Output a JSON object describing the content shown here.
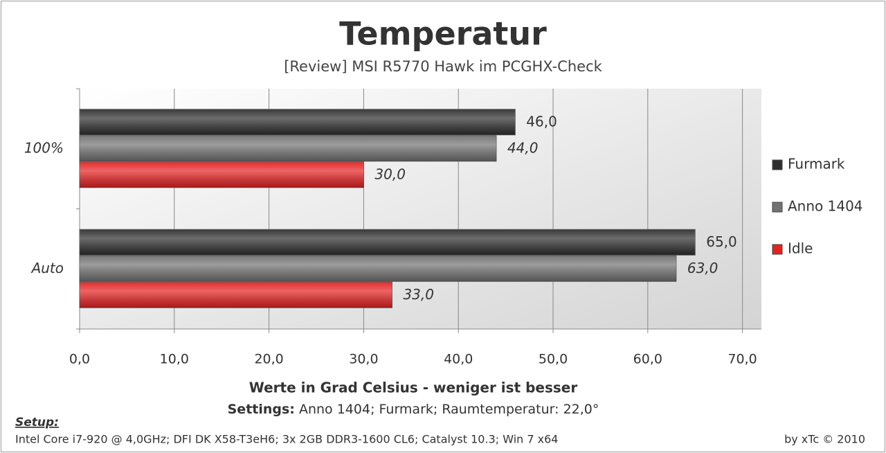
{
  "chart_data": {
    "type": "hbar",
    "title": "Temperatur",
    "subtitle": "[Review] MSI R5770 Hawk im PCGHX-Check",
    "categories": [
      "100%",
      "Auto"
    ],
    "series": [
      {
        "name": "Furmark",
        "color": "#2e2e2e",
        "values": [
          46,
          65
        ],
        "value_labels": [
          "46,0",
          "65,0"
        ]
      },
      {
        "name": "Anno 1404",
        "color": "#727272",
        "values": [
          44,
          63
        ],
        "value_labels": [
          "44,0",
          "63,0"
        ]
      },
      {
        "name": "Idle",
        "color": "#e52222",
        "values": [
          30,
          33
        ],
        "value_labels": [
          "30,0",
          "33,0"
        ]
      }
    ],
    "xlim": [
      0,
      72
    ],
    "xticks": [
      {
        "value": 0,
        "label": "0,0"
      },
      {
        "value": 10,
        "label": "10,0"
      },
      {
        "value": 20,
        "label": "20,0"
      },
      {
        "value": 30,
        "label": "30,0"
      },
      {
        "value": 40,
        "label": "40,0"
      },
      {
        "value": 50,
        "label": "50,0"
      },
      {
        "value": 60,
        "label": "60,0"
      },
      {
        "value": 70,
        "label": "70,0"
      }
    ],
    "grid": true,
    "legend": "right",
    "xlabel": "Werte in Grad Celsius - weniger ist besser",
    "settings_label": "Settings:",
    "settings_text": "Anno 1404; Furmark; Raumtemperatur: 22,0°",
    "setup_label": "Setup:",
    "setup_text": "Intel Core i7-920 @ 4,0GHz; DFI DK X58-T3eH6; 3x 2GB DDR3-1600 CL6; Catalyst 10.3; Win 7 x64",
    "credit": "by xTc © 2010"
  }
}
